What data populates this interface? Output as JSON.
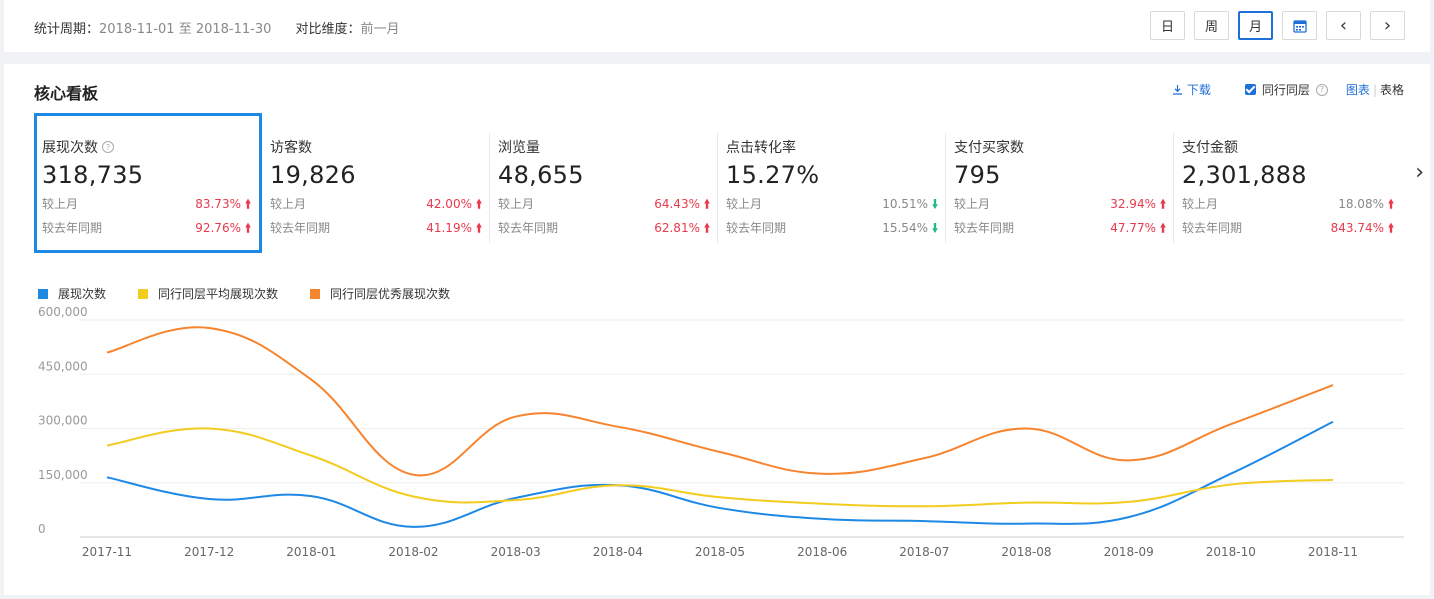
{
  "header": {
    "period_label": "统计周期：",
    "period_value": "2018-11-01 至 2018-11-30",
    "compare_label": "对比维度：",
    "compare_value": "前一月",
    "buttons": {
      "day": "日",
      "week": "周",
      "month": "月",
      "prev": "‹",
      "next": "›"
    }
  },
  "panel": {
    "title": "核心看板",
    "download": "下载",
    "peer_label": "同行同层",
    "view_chart": "图表",
    "view_sep": "|",
    "view_table": "表格"
  },
  "metrics": [
    {
      "name": "展现次数",
      "value": "318,735",
      "r1_label": "较上月",
      "r1_pct": "83.73%",
      "r1_dir": "up",
      "r2_label": "较去年同期",
      "r2_pct": "92.76%",
      "r2_dir": "up"
    },
    {
      "name": "访客数",
      "value": "19,826",
      "r1_label": "较上月",
      "r1_pct": "42.00%",
      "r1_dir": "up",
      "r2_label": "较去年同期",
      "r2_pct": "41.19%",
      "r2_dir": "up"
    },
    {
      "name": "浏览量",
      "value": "48,655",
      "r1_label": "较上月",
      "r1_pct": "64.43%",
      "r1_dir": "up",
      "r2_label": "较去年同期",
      "r2_pct": "62.81%",
      "r2_dir": "up"
    },
    {
      "name": "点击转化率",
      "value": "15.27%",
      "r1_label": "较上月",
      "r1_pct": "10.51%",
      "r1_dir": "down",
      "r2_label": "较去年同期",
      "r2_pct": "15.54%",
      "r2_dir": "down"
    },
    {
      "name": "支付买家数",
      "value": "795",
      "r1_label": "较上月",
      "r1_pct": "32.94%",
      "r1_dir": "up",
      "r2_label": "较去年同期",
      "r2_pct": "47.77%",
      "r2_dir": "up"
    },
    {
      "name": "支付金额",
      "value": "2,301,888",
      "r1_label": "较上月",
      "r1_pct": "18.08%",
      "r1_dir": "up",
      "r2_label": "较去年同期",
      "r2_pct": "843.74%",
      "r2_dir": "up"
    }
  ],
  "colors": {
    "accent": "#1e6fd9",
    "up": "#e8394d",
    "down": "#22bb88"
  },
  "chart_data": {
    "type": "line",
    "categories": [
      "2017-11",
      "2017-12",
      "2018-01",
      "2018-02",
      "2018-03",
      "2018-04",
      "2018-05",
      "2018-06",
      "2018-07",
      "2018-08",
      "2018-09",
      "2018-10",
      "2018-11"
    ],
    "ylim": [
      0,
      600000
    ],
    "yticks": [
      "0",
      "150,000",
      "300,000",
      "450,000",
      "600,000"
    ],
    "grid": true,
    "legend_position": "top-left",
    "series": [
      {
        "name": "展现次数",
        "color": "#1e88e5",
        "values": [
          165000,
          105000,
          113000,
          28000,
          108000,
          143000,
          80000,
          50000,
          44000,
          37000,
          55000,
          175000,
          318735
        ]
      },
      {
        "name": "同行同层平均展现次数",
        "color": "#f2cc1f",
        "values": [
          253000,
          300000,
          225000,
          112000,
          102000,
          143000,
          110000,
          92000,
          85000,
          95000,
          97000,
          145000,
          158000
        ]
      },
      {
        "name": "同行同层优秀展现次数",
        "color": "#f7842e",
        "values": [
          510000,
          578000,
          435000,
          172000,
          333000,
          305000,
          235000,
          175000,
          218000,
          300000,
          212000,
          312000,
          420000
        ]
      }
    ]
  }
}
